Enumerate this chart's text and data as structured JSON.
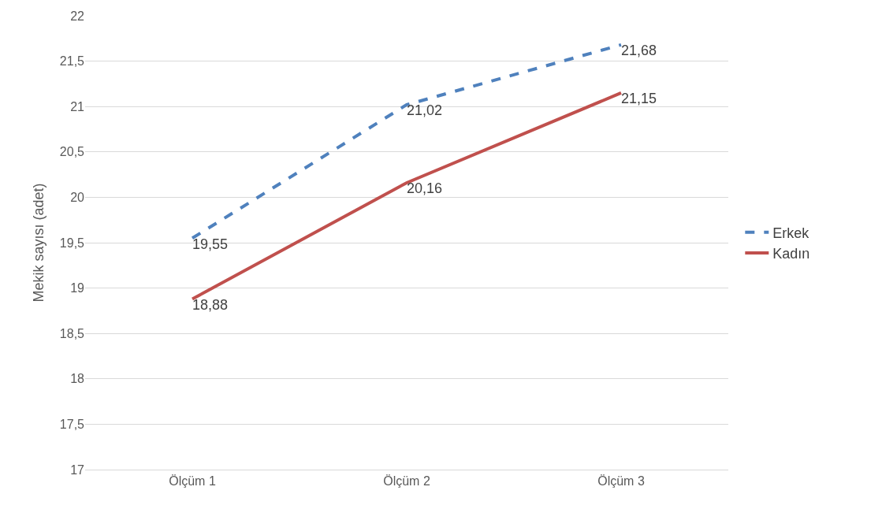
{
  "chart_data": {
    "type": "line",
    "ylabel": "Mekik sayısı (adet)",
    "categories": [
      "Ölçüm 1",
      "Ölçüm 2",
      "Ölçüm 3"
    ],
    "series": [
      {
        "name": "Erkek",
        "color": "#4f81bd",
        "line_style": "dashed",
        "values": [
          19.55,
          21.02,
          21.68
        ],
        "value_labels": [
          "19,55",
          "21,02",
          "21,68"
        ]
      },
      {
        "name": "Kadın",
        "color": "#c0504d",
        "line_style": "solid",
        "values": [
          18.88,
          20.16,
          21.15
        ],
        "value_labels": [
          "18,88",
          "20,16",
          "21,15"
        ]
      }
    ],
    "ylim": [
      17,
      22
    ],
    "yticks": [
      17,
      {
        "value": 17.5,
        "label": "17,5"
      },
      18,
      {
        "value": 18.5,
        "label": "18,5"
      },
      19,
      {
        "value": 19.5,
        "label": "19,5"
      },
      20,
      {
        "value": 20.5,
        "label": "20,5"
      },
      21,
      {
        "value": 21.5,
        "label": "21,5"
      },
      22
    ],
    "grid": "y",
    "legend": "right"
  }
}
